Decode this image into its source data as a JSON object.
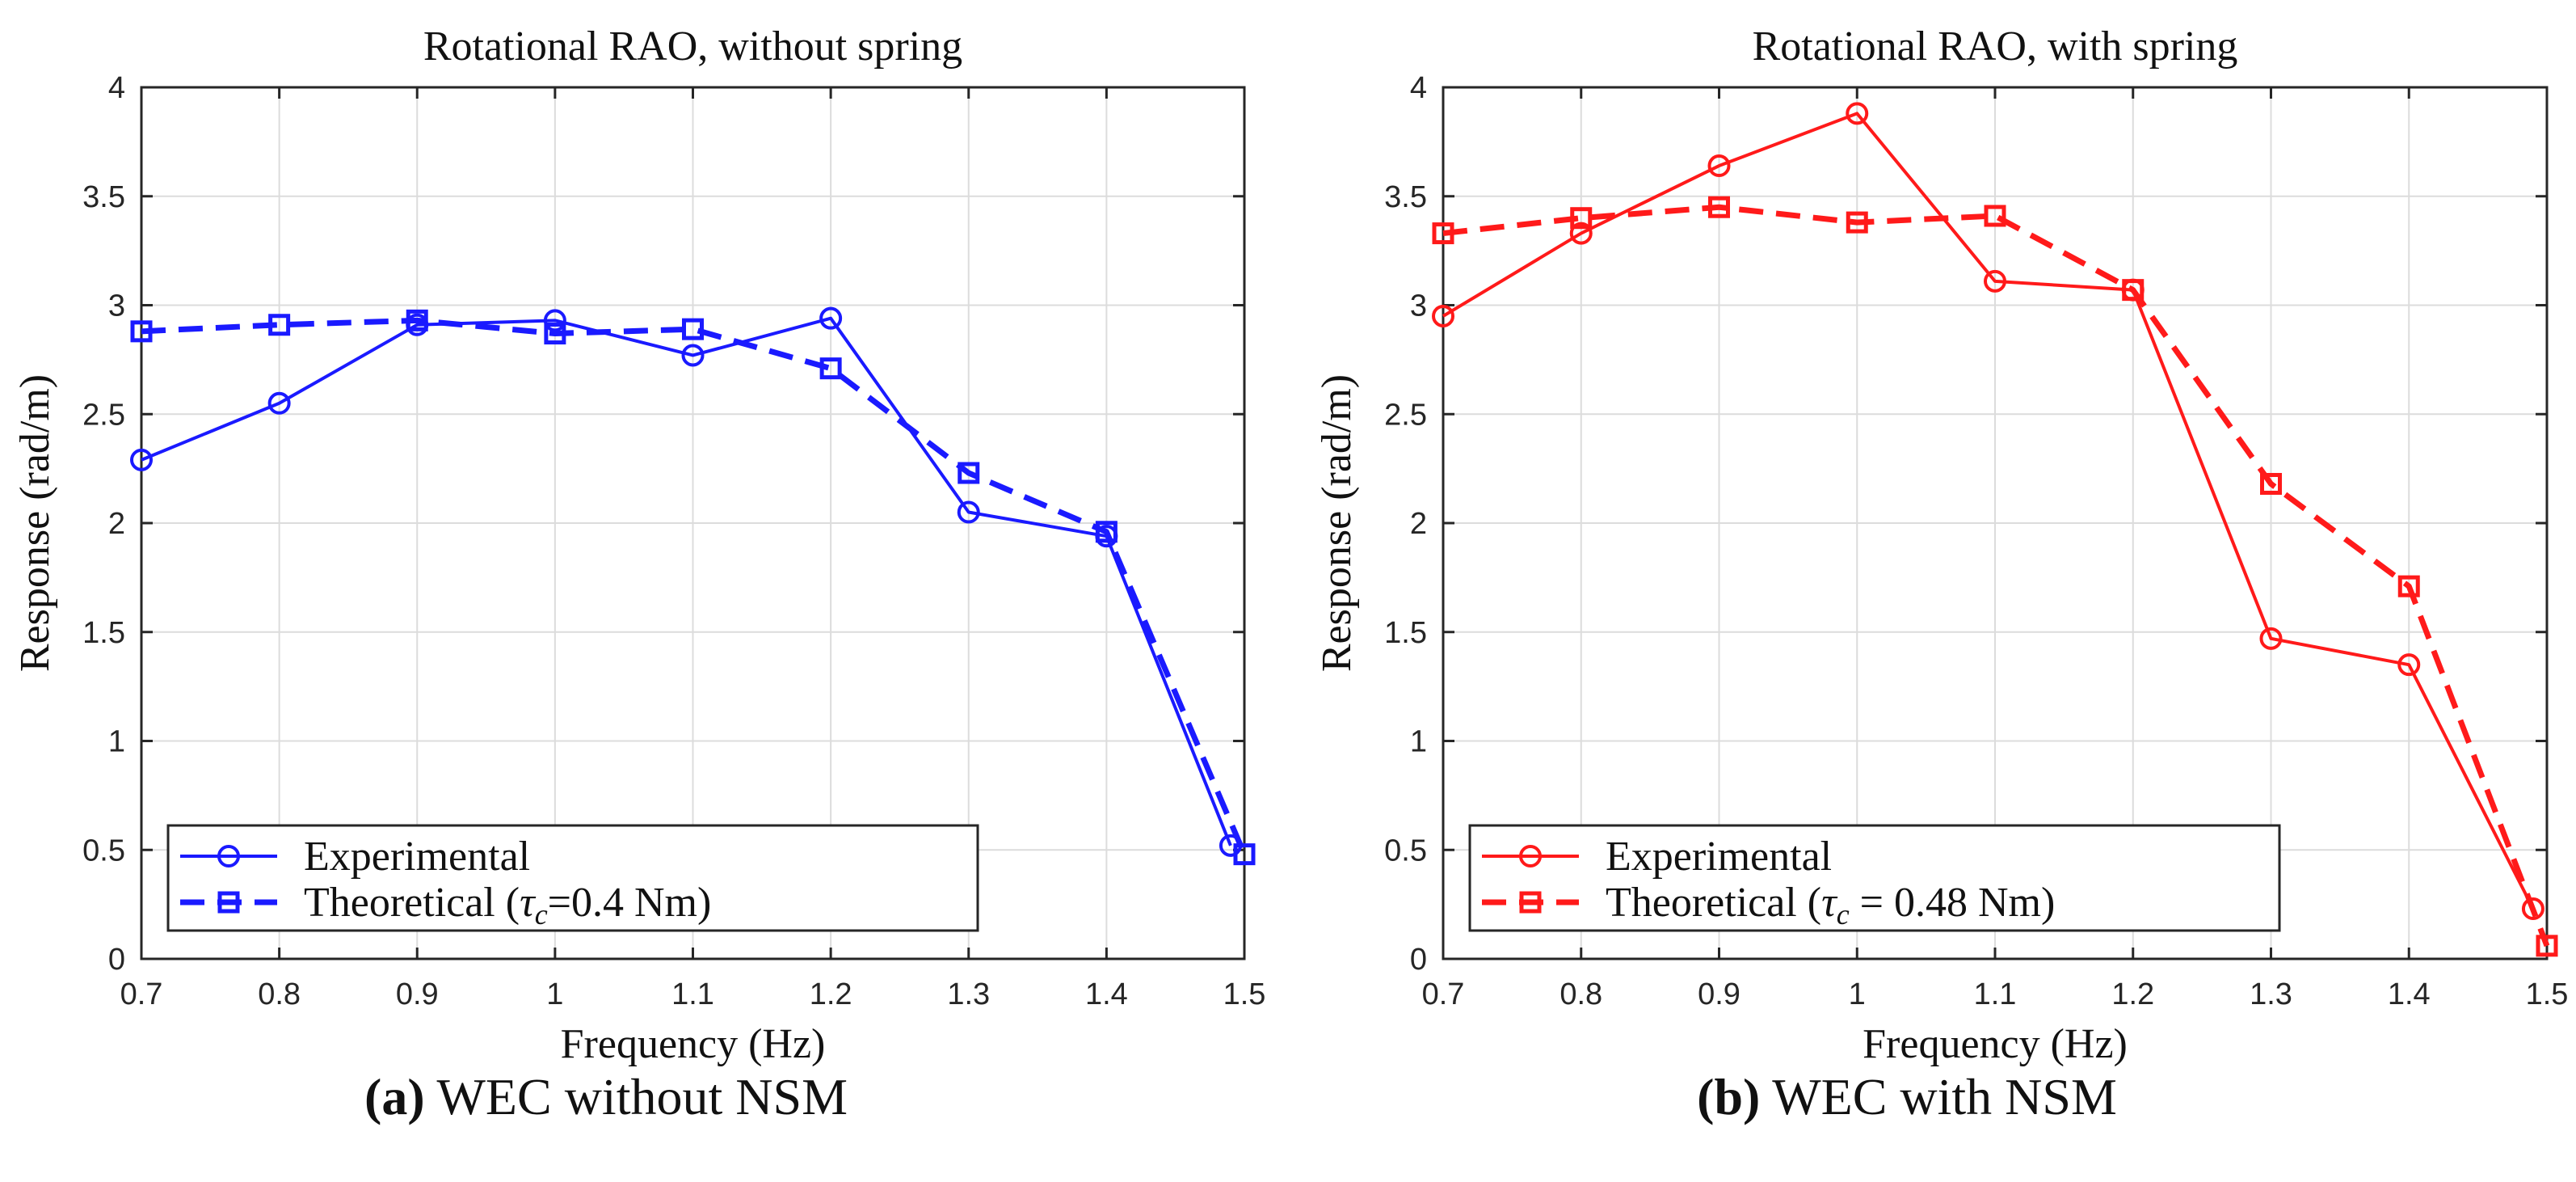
{
  "figure": {
    "captions": [
      {
        "letter": "(a)",
        "text": " WEC without NSM"
      },
      {
        "letter": "(b)",
        "text": " WEC with NSM"
      }
    ]
  },
  "chart_data": [
    {
      "type": "line",
      "title": "Rotational RAO, without spring",
      "xlabel": "Frequency (Hz)",
      "ylabel": "Response (rad/m)",
      "xlim": [
        0.7,
        1.5
      ],
      "ylim": [
        0,
        4
      ],
      "xticks": [
        0.7,
        0.8,
        0.9,
        1,
        1.1,
        1.2,
        1.3,
        1.4,
        1.5
      ],
      "xticklabels": [
        "0.7",
        "0.8",
        "0.9",
        "1",
        "1.1",
        "1.2",
        "1.3",
        "1.4",
        "1.5"
      ],
      "yticks": [
        0,
        0.5,
        1,
        1.5,
        2,
        2.5,
        3,
        3.5,
        4
      ],
      "yticklabels": [
        "0",
        "0.5",
        "1",
        "1.5",
        "2",
        "2.5",
        "3",
        "3.5",
        "4"
      ],
      "grid": true,
      "color": "#1a1aff",
      "legend_position": "bottom-left",
      "series": [
        {
          "name": "Experimental",
          "style": "solid",
          "marker": "circle",
          "x": [
            0.7,
            0.8,
            0.9,
            1.0,
            1.1,
            1.2,
            1.3,
            1.4,
            1.49
          ],
          "y": [
            2.29,
            2.55,
            2.91,
            2.93,
            2.77,
            2.94,
            2.05,
            1.94,
            0.52
          ]
        },
        {
          "name": "Theoretical (τc=0.4 Nm)",
          "style": "dashed",
          "marker": "square",
          "x": [
            0.7,
            0.8,
            0.9,
            1.0,
            1.1,
            1.2,
            1.3,
            1.4,
            1.5
          ],
          "y": [
            2.88,
            2.91,
            2.93,
            2.87,
            2.89,
            2.71,
            2.23,
            1.96,
            0.48
          ]
        }
      ],
      "legend": [
        {
          "label": "Experimental"
        },
        {
          "label_main": "Theoretical (",
          "label_sym": "τ",
          "label_sub": "c",
          "label_rest": "=0.4 Nm)"
        }
      ]
    },
    {
      "type": "line",
      "title": "Rotational RAO, with spring",
      "xlabel": "Frequency (Hz)",
      "ylabel": "Response (rad/m)",
      "xlim": [
        0.7,
        1.5
      ],
      "ylim": [
        0,
        4
      ],
      "xticks": [
        0.7,
        0.8,
        0.9,
        1,
        1.1,
        1.2,
        1.3,
        1.4,
        1.5
      ],
      "xticklabels": [
        "0.7",
        "0.8",
        "0.9",
        "1",
        "1.1",
        "1.2",
        "1.3",
        "1.4",
        "1.5"
      ],
      "yticks": [
        0,
        0.5,
        1,
        1.5,
        2,
        2.5,
        3,
        3.5,
        4
      ],
      "yticklabels": [
        "0",
        "0.5",
        "1",
        "1.5",
        "2",
        "2.5",
        "3",
        "3.5",
        "4"
      ],
      "grid": true,
      "color": "#ff1a1a",
      "legend_position": "bottom-left",
      "series": [
        {
          "name": "Experimental",
          "style": "solid",
          "marker": "circle",
          "x": [
            0.7,
            0.8,
            0.9,
            1.0,
            1.1,
            1.2,
            1.3,
            1.4,
            1.49
          ],
          "y": [
            2.95,
            3.33,
            3.64,
            3.88,
            3.11,
            3.07,
            1.47,
            1.35,
            0.23
          ]
        },
        {
          "name": "Theoretical (τc = 0.48 Nm)",
          "style": "dashed",
          "marker": "square",
          "x": [
            0.7,
            0.8,
            0.9,
            1.0,
            1.1,
            1.2,
            1.3,
            1.4,
            1.5
          ],
          "y": [
            3.33,
            3.4,
            3.45,
            3.38,
            3.41,
            3.07,
            2.18,
            1.71,
            0.06
          ]
        }
      ],
      "legend": [
        {
          "label": "Experimental"
        },
        {
          "label_main": "Theoretical (",
          "label_sym": "τ",
          "label_sub": "c",
          "label_rest": " = 0.48 Nm)"
        }
      ]
    }
  ]
}
